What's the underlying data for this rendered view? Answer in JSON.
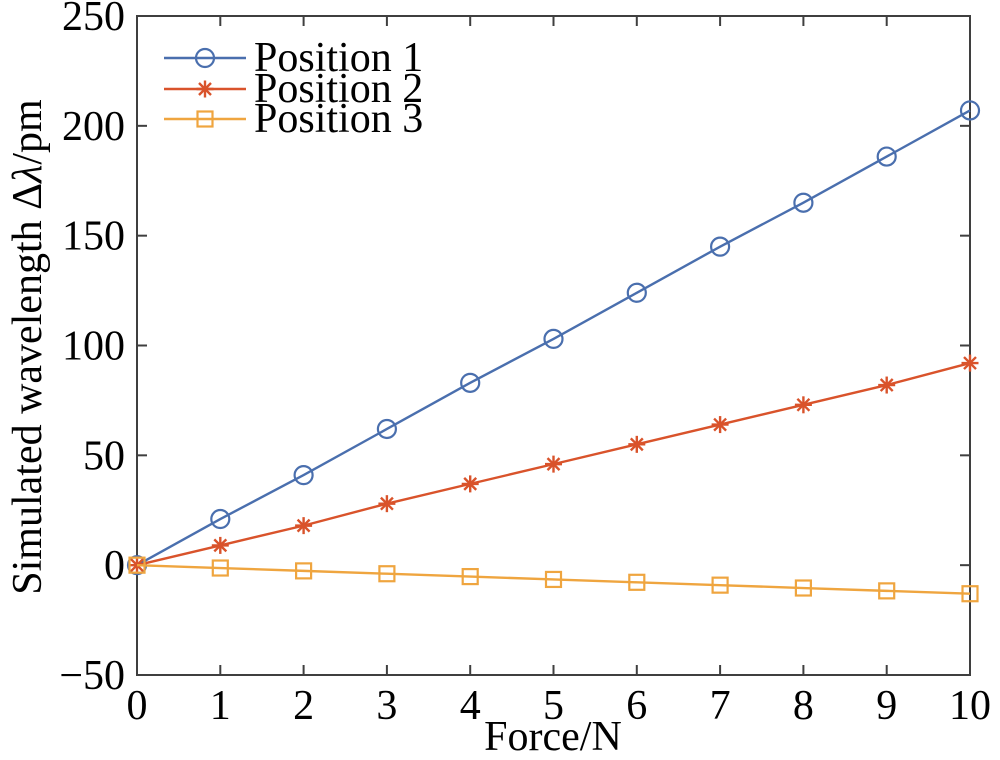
{
  "chart_data": {
    "type": "line",
    "title": "",
    "xlabel": "Force/N",
    "ylabel": "Simulated wavelength Δλ/pm",
    "xlim": [
      0,
      10
    ],
    "ylim": [
      -50,
      250
    ],
    "xticks": [
      0,
      1,
      2,
      3,
      4,
      5,
      6,
      7,
      8,
      9,
      10
    ],
    "yticks": [
      -50,
      0,
      50,
      100,
      150,
      200,
      250
    ],
    "grid": false,
    "legend_position": "upper-left",
    "legend_frame": false,
    "axis_color": "#3f3f3f",
    "background_color": "#ffffff",
    "x": [
      0,
      1,
      2,
      3,
      4,
      5,
      6,
      7,
      8,
      9,
      10
    ],
    "series": [
      {
        "name": "Position 1",
        "marker": "circle",
        "color": "#4a6fae",
        "values": [
          0,
          21,
          41,
          62,
          83,
          103,
          124,
          145,
          165,
          186,
          207
        ]
      },
      {
        "name": "Position 2",
        "marker": "asterisk",
        "color": "#d9532b",
        "values": [
          0,
          9,
          18,
          28,
          37,
          46,
          55,
          64,
          73,
          82,
          92
        ]
      },
      {
        "name": "Position 3",
        "marker": "square",
        "color": "#efa53f",
        "values": [
          0,
          -1.3,
          -2.6,
          -3.9,
          -5.2,
          -6.5,
          -7.8,
          -9.1,
          -10.4,
          -11.7,
          -13
        ]
      }
    ]
  }
}
